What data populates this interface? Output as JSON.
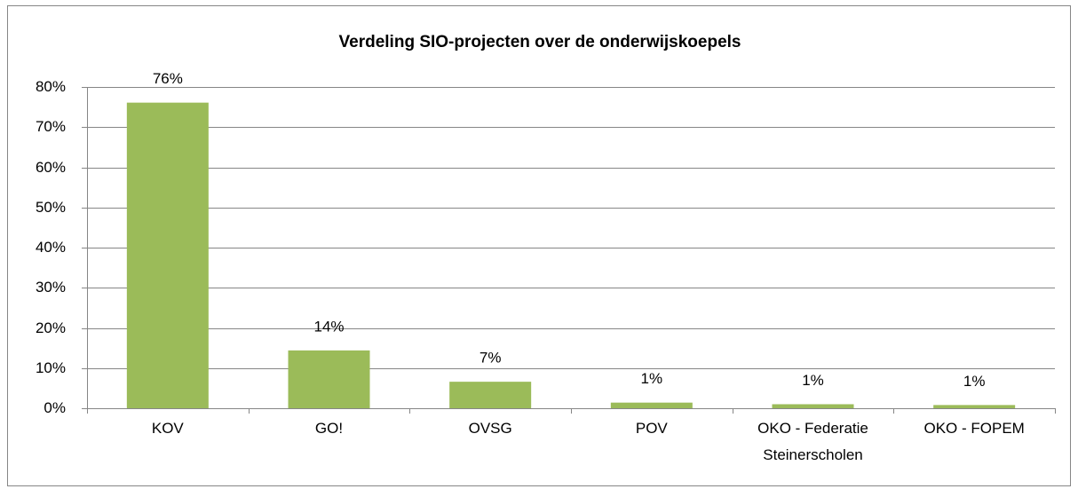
{
  "chart_data": {
    "type": "bar",
    "title": "Verdeling SIO-projecten over de onderwijskoepels",
    "categories": [
      "KOV",
      "GO!",
      "OVSG",
      "POV",
      "OKO - Federatie Steinerscholen",
      "OKO - FOPEM"
    ],
    "values": [
      76.1,
      14.4,
      6.6,
      1.4,
      1.0,
      0.8
    ],
    "value_labels": [
      "76%",
      "14%",
      "7%",
      "1%",
      "1%",
      "1%"
    ],
    "color": "#9bbb59",
    "ylim": [
      0,
      80
    ],
    "yticks": [
      {
        "value": 0,
        "label": "0%"
      },
      {
        "value": 10,
        "label": "10%"
      },
      {
        "value": 20,
        "label": "20%"
      },
      {
        "value": 30,
        "label": "30%"
      },
      {
        "value": 40,
        "label": "40%"
      },
      {
        "value": 50,
        "label": "50%"
      },
      {
        "value": 60,
        "label": "60%"
      },
      {
        "value": 70,
        "label": "70%"
      },
      {
        "value": 80,
        "label": "80%"
      }
    ],
    "grid": true
  }
}
